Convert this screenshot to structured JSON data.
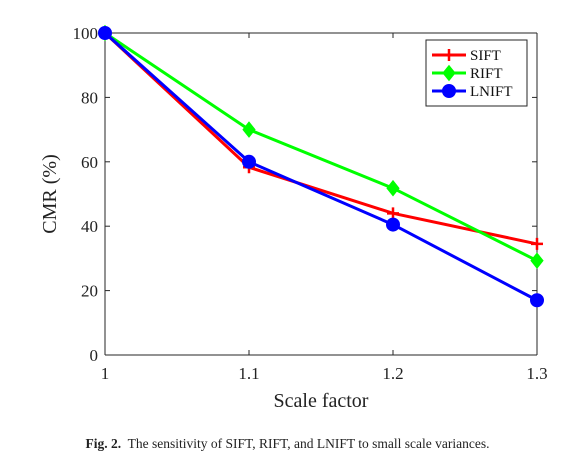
{
  "chart_data": {
    "type": "line",
    "xlabel": "Scale factor",
    "ylabel": "CMR (%)",
    "xlim": [
      1,
      1.3
    ],
    "ylim": [
      0,
      100
    ],
    "x": [
      1,
      1.1,
      1.2,
      1.3
    ],
    "x_tick_labels": [
      "1",
      "1.1",
      "1.2",
      "1.3"
    ],
    "y_ticks": [
      0,
      20,
      40,
      60,
      80,
      100
    ],
    "y_tick_labels": [
      "0",
      "20",
      "40",
      "60",
      "80",
      "100"
    ],
    "legend_position": "top-right",
    "grid": false,
    "series": [
      {
        "name": "SIFT",
        "values": [
          100,
          58.3,
          44.0,
          34.5
        ],
        "color": "#ff0000",
        "marker": "plus"
      },
      {
        "name": "RIFT",
        "values": [
          100,
          70.0,
          51.8,
          29.3
        ],
        "color": "#00ff00",
        "marker": "diamond"
      },
      {
        "name": "LNIFT",
        "values": [
          100,
          60.0,
          40.5,
          17.0
        ],
        "color": "#0000ff",
        "marker": "circle"
      }
    ]
  },
  "caption": {
    "label": "Fig. 2.",
    "text": "The sensitivity of SIFT, RIFT, and LNIFT to small scale variances."
  }
}
